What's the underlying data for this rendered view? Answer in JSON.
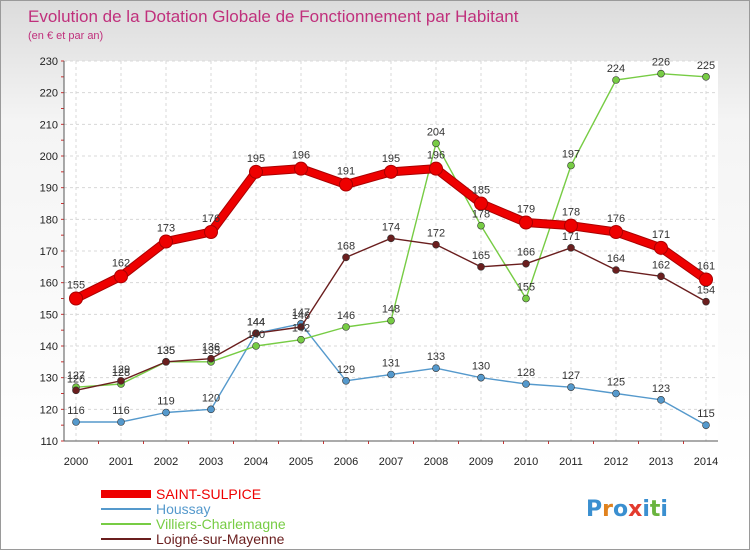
{
  "chart_data": {
    "type": "line",
    "title": "Evolution de la Dotation Globale de Fonctionnement par Habitant",
    "subtitle": "(en € et par an)",
    "xlabel": "",
    "ylabel": "",
    "x": [
      "2000",
      "2001",
      "2002",
      "2003",
      "2004",
      "2005",
      "2006",
      "2007",
      "2008",
      "2009",
      "2010",
      "2011",
      "2012",
      "2013",
      "2014"
    ],
    "ylim": [
      110,
      230
    ],
    "yticks": [
      110,
      120,
      130,
      140,
      150,
      160,
      170,
      180,
      190,
      200,
      210,
      220,
      230
    ],
    "grid": true,
    "legend_position": "bottom-left",
    "series": [
      {
        "name": "SAINT-SULPICE",
        "color": "#ee0000",
        "values": [
          155,
          162,
          173,
          176,
          195,
          196,
          191,
          195,
          196,
          185,
          179,
          178,
          176,
          171,
          161
        ]
      },
      {
        "name": "Houssay",
        "color": "#5599cc",
        "values": [
          116,
          116,
          119,
          120,
          144,
          147,
          129,
          131,
          133,
          130,
          128,
          127,
          125,
          123,
          115
        ]
      },
      {
        "name": "Villiers-Charlemagne",
        "color": "#77cc44",
        "values": [
          127,
          128,
          135,
          135,
          140,
          142,
          146,
          148,
          204,
          178,
          155,
          197,
          224,
          226,
          225
        ]
      },
      {
        "name": "Loigné-sur-Mayenne",
        "color": "#6a1e1e",
        "values": [
          126,
          129,
          135,
          136,
          144,
          146,
          168,
          174,
          172,
          165,
          166,
          171,
          164,
          162,
          154
        ]
      }
    ]
  },
  "logo": {
    "text": "Proxiti"
  }
}
